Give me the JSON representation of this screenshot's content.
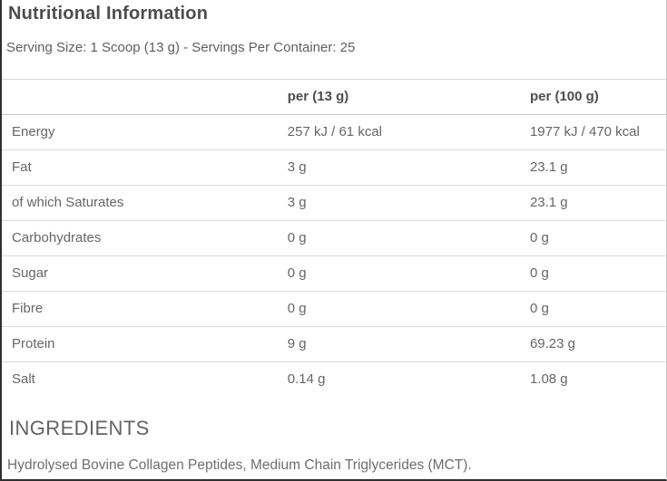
{
  "header": {
    "title": "Nutritional Information",
    "serving_info": "Serving Size: 1 Scoop (13 g) - Servings Per Container: 25"
  },
  "table": {
    "columns": [
      "",
      "per (13 g)",
      "per (100 g)"
    ],
    "rows": [
      {
        "label": "Energy",
        "per_serving": "257 kJ / 61 kcal",
        "per_100g": "1977 kJ / 470 kcal"
      },
      {
        "label": "Fat",
        "per_serving": "3 g",
        "per_100g": "23.1 g"
      },
      {
        "label": "of which Saturates",
        "per_serving": "3 g",
        "per_100g": "23.1 g"
      },
      {
        "label": "Carbohydrates",
        "per_serving": "0 g",
        "per_100g": "0 g"
      },
      {
        "label": "Sugar",
        "per_serving": "0 g",
        "per_100g": "0 g"
      },
      {
        "label": "Fibre",
        "per_serving": "0 g",
        "per_100g": "0 g"
      },
      {
        "label": "Protein",
        "per_serving": "9 g",
        "per_100g": "69.23 g"
      },
      {
        "label": "Salt",
        "per_serving": "0.14 g",
        "per_100g": "1.08 g"
      }
    ]
  },
  "ingredients": {
    "heading": "INGREDIENTS",
    "text": "Hydrolysed Bovine Collagen Peptides, Medium Chain Triglycerides (MCT)."
  },
  "colors": {
    "text_primary": "#4d4d4d",
    "text_secondary": "#666666",
    "divider": "#dcdcdc",
    "header_divider": "#c6c6c6",
    "frame": "#2f2f2f"
  }
}
